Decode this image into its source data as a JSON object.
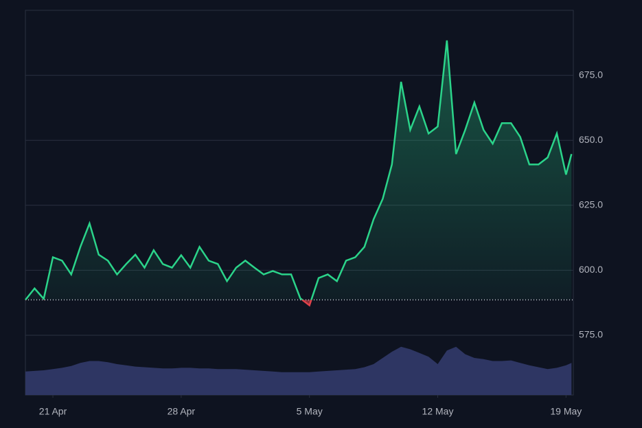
{
  "chart_data": {
    "type": "area",
    "x": [
      19.5,
      20,
      20.5,
      21,
      21.5,
      22,
      22.5,
      23,
      23.5,
      24,
      24.5,
      25,
      25.5,
      26,
      26.5,
      27,
      27.5,
      28,
      28.5,
      29,
      29.5,
      30,
      30.5,
      31,
      31.5,
      32,
      32.5,
      33,
      33.5,
      34,
      34.5,
      35,
      35.5,
      36,
      36.5,
      37,
      37.5,
      38,
      38.5,
      39,
      39.5,
      40,
      40.5,
      41,
      41.5,
      42,
      42.5,
      43,
      43.5,
      44,
      44.5,
      45,
      45.5,
      46,
      46.5,
      47,
      47.5,
      48,
      48.5,
      49,
      49.3
    ],
    "series": [
      {
        "name": "price",
        "color": "#2bd48a",
        "below_color": "#e0424b",
        "values": [
          588.6,
          593,
          589,
          605,
          603.7,
          598.4,
          609,
          618,
          606,
          603.7,
          598.4,
          602.4,
          606,
          601,
          607.7,
          602.4,
          601,
          605.8,
          601,
          609,
          603.7,
          602.4,
          595.8,
          601,
          603.7,
          601,
          598.4,
          599.7,
          598.4,
          598.4,
          589.2,
          586.5,
          597,
          598.4,
          595.8,
          603.7,
          605,
          609,
          619.6,
          627.5,
          640.7,
          672.5,
          654,
          663,
          652.6,
          655.3,
          688.4,
          644.7,
          654,
          664.5,
          654,
          648.7,
          656.6,
          656.6,
          651.3,
          640.7,
          640.7,
          643.4,
          652.6,
          636.8,
          644.7
        ]
      },
      {
        "name": "volume",
        "color": "#2e3663",
        "values": [
          38,
          39,
          40,
          42,
          44,
          47,
          52,
          55,
          55,
          53,
          50,
          48,
          46,
          45,
          44,
          43,
          43,
          44,
          44,
          43,
          43,
          42,
          42,
          42,
          41,
          40,
          39,
          38,
          37,
          37,
          37,
          37,
          38,
          39,
          40,
          41,
          42,
          45,
          50,
          60,
          70,
          78,
          74,
          68,
          62,
          50,
          72,
          78,
          66,
          60,
          58,
          55,
          55,
          56,
          52,
          48,
          45,
          42,
          44,
          48,
          52
        ]
      }
    ],
    "baseline": 588.6,
    "ylim": [
      552,
      700
    ],
    "yticks": [
      {
        "value": 575,
        "label": "575.0"
      },
      {
        "value": 600,
        "label": "600.0"
      },
      {
        "value": 625,
        "label": "625.0"
      },
      {
        "value": 650,
        "label": "650.0"
      },
      {
        "value": 675,
        "label": "675.0"
      }
    ],
    "volume_lim": [
      0,
      100
    ],
    "xlim": [
      19.5,
      49.4
    ],
    "xticks": [
      {
        "value": 21,
        "label": "21 Apr"
      },
      {
        "value": 28,
        "label": "28 Apr"
      },
      {
        "value": 35,
        "label": "5 May"
      },
      {
        "value": 42,
        "label": "12 May"
      },
      {
        "value": 49,
        "label": "19 May"
      }
    ],
    "grid": true
  }
}
